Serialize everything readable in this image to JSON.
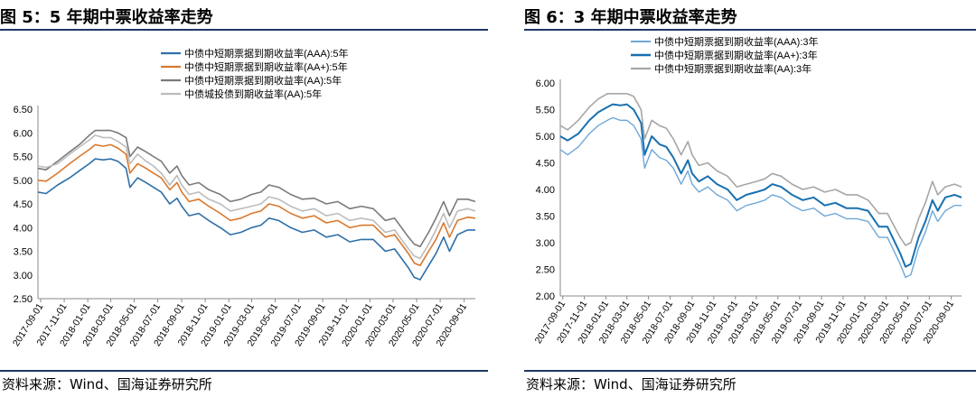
{
  "colors": {
    "aaa": "#2e6fa8",
    "aa_plus": "#d9782d",
    "aa": "#7a7a7a",
    "lgfv": "#bcbcbc",
    "aaa_light": "#6fa8d8",
    "aa_plus_dark": "#1870b0",
    "aa_light": "#a6a6a6",
    "rule": "#1f3864",
    "axis": "#888888"
  },
  "left": {
    "title": "图 5：5 年期中票收益率走势",
    "source": "资料来源：Wind、国海证券研究所"
  },
  "right": {
    "title": "图 6：3 年期中票收益率走势",
    "source": "资料来源：Wind、国海证券研究所"
  },
  "chart_data": [
    {
      "type": "line",
      "ylim": [
        2.5,
        6.5
      ],
      "yticks": [
        "2.50",
        "3.00",
        "3.50",
        "4.00",
        "4.50",
        "5.00",
        "5.50",
        "6.00",
        "6.50"
      ],
      "xlim": [
        "2017-08-25",
        "2020-09-30"
      ],
      "xticks": [
        "2017-09-01",
        "2017-11-01",
        "2018-01-01",
        "2018-03-01",
        "2018-05-01",
        "2018-07-01",
        "2018-09-01",
        "2018-11-01",
        "2019-01-01",
        "2019-03-01",
        "2019-05-01",
        "2019-07-01",
        "2019-09-01",
        "2019-11-01",
        "2020-01-01",
        "2020-03-01",
        "2020-05-01",
        "2020-07-01",
        "2020-09-01"
      ],
      "legend_position": "top-right",
      "series": [
        {
          "name": "中债中短期票据到期收益率(AAA):5年",
          "color": "#2e6fa8",
          "x": [
            "2017-08-25",
            "2017-09-15",
            "2017-10-15",
            "2017-11-15",
            "2017-12-10",
            "2018-01-05",
            "2018-01-20",
            "2018-02-10",
            "2018-03-01",
            "2018-03-20",
            "2018-04-10",
            "2018-04-20",
            "2018-05-10",
            "2018-06-01",
            "2018-06-20",
            "2018-07-10",
            "2018-08-01",
            "2018-08-20",
            "2018-09-01",
            "2018-09-20",
            "2018-10-15",
            "2018-11-10",
            "2018-12-10",
            "2019-01-05",
            "2019-02-01",
            "2019-03-01",
            "2019-03-25",
            "2019-04-15",
            "2019-05-10",
            "2019-06-10",
            "2019-07-10",
            "2019-08-10",
            "2019-09-10",
            "2019-10-10",
            "2019-11-10",
            "2019-12-10",
            "2020-01-10",
            "2020-02-10",
            "2020-03-05",
            "2020-04-10",
            "2020-04-25",
            "2020-05-10",
            "2020-06-01",
            "2020-06-20",
            "2020-07-10",
            "2020-07-25",
            "2020-08-15",
            "2020-09-10",
            "2020-09-30"
          ],
          "y": [
            4.75,
            4.72,
            4.9,
            5.05,
            5.2,
            5.35,
            5.45,
            5.43,
            5.45,
            5.4,
            5.25,
            4.85,
            5.05,
            4.95,
            4.85,
            4.75,
            4.5,
            4.62,
            4.45,
            4.25,
            4.3,
            4.15,
            4.0,
            3.85,
            3.9,
            4.0,
            4.05,
            4.2,
            4.15,
            4.0,
            3.9,
            3.95,
            3.8,
            3.85,
            3.7,
            3.75,
            3.75,
            3.5,
            3.55,
            3.15,
            2.95,
            2.9,
            3.2,
            3.45,
            3.8,
            3.5,
            3.85,
            3.95,
            3.95
          ]
        },
        {
          "name": "中债中短期票据到期收益率(AA+):5年",
          "color": "#d9782d",
          "x": [
            "2017-08-25",
            "2017-09-15",
            "2017-10-15",
            "2017-11-15",
            "2017-12-10",
            "2018-01-05",
            "2018-01-20",
            "2018-02-10",
            "2018-03-01",
            "2018-03-20",
            "2018-04-10",
            "2018-04-20",
            "2018-05-10",
            "2018-06-01",
            "2018-06-20",
            "2018-07-10",
            "2018-08-01",
            "2018-08-20",
            "2018-09-01",
            "2018-09-20",
            "2018-10-15",
            "2018-11-10",
            "2018-12-10",
            "2019-01-05",
            "2019-02-01",
            "2019-03-01",
            "2019-03-25",
            "2019-04-15",
            "2019-05-10",
            "2019-06-10",
            "2019-07-10",
            "2019-08-10",
            "2019-09-10",
            "2019-10-10",
            "2019-11-10",
            "2019-12-10",
            "2020-01-10",
            "2020-02-10",
            "2020-03-05",
            "2020-04-10",
            "2020-04-25",
            "2020-05-10",
            "2020-06-01",
            "2020-06-20",
            "2020-07-10",
            "2020-07-25",
            "2020-08-15",
            "2020-09-10",
            "2020-09-30"
          ],
          "y": [
            5.0,
            4.98,
            5.15,
            5.35,
            5.5,
            5.65,
            5.75,
            5.72,
            5.75,
            5.68,
            5.55,
            5.15,
            5.35,
            5.25,
            5.15,
            5.05,
            4.8,
            4.95,
            4.75,
            4.55,
            4.6,
            4.45,
            4.3,
            4.15,
            4.2,
            4.3,
            4.35,
            4.5,
            4.45,
            4.3,
            4.2,
            4.25,
            4.1,
            4.15,
            4.0,
            4.05,
            4.05,
            3.8,
            3.85,
            3.45,
            3.25,
            3.2,
            3.5,
            3.75,
            4.1,
            3.8,
            4.15,
            4.22,
            4.2
          ]
        },
        {
          "name": "中债中短期票据到期收益率(AA):5年",
          "color": "#7a7a7a",
          "x": [
            "2017-08-25",
            "2017-09-15",
            "2017-10-15",
            "2017-11-15",
            "2017-12-10",
            "2018-01-05",
            "2018-01-20",
            "2018-02-10",
            "2018-03-01",
            "2018-03-20",
            "2018-04-10",
            "2018-04-20",
            "2018-05-10",
            "2018-06-01",
            "2018-06-20",
            "2018-07-10",
            "2018-08-01",
            "2018-08-20",
            "2018-09-01",
            "2018-09-20",
            "2018-10-15",
            "2018-11-10",
            "2018-12-10",
            "2019-01-05",
            "2019-02-01",
            "2019-03-01",
            "2019-03-25",
            "2019-04-15",
            "2019-05-10",
            "2019-06-10",
            "2019-07-10",
            "2019-08-10",
            "2019-09-10",
            "2019-10-10",
            "2019-11-10",
            "2019-12-10",
            "2020-01-10",
            "2020-02-10",
            "2020-03-05",
            "2020-04-10",
            "2020-04-25",
            "2020-05-10",
            "2020-06-01",
            "2020-06-20",
            "2020-07-10",
            "2020-07-25",
            "2020-08-15",
            "2020-09-10",
            "2020-09-30"
          ],
          "y": [
            5.25,
            5.22,
            5.4,
            5.6,
            5.75,
            5.95,
            6.05,
            6.05,
            6.05,
            6.0,
            5.9,
            5.5,
            5.7,
            5.6,
            5.5,
            5.4,
            5.15,
            5.3,
            5.1,
            4.9,
            4.95,
            4.8,
            4.7,
            4.55,
            4.6,
            4.7,
            4.75,
            4.9,
            4.85,
            4.7,
            4.6,
            4.62,
            4.5,
            4.55,
            4.4,
            4.45,
            4.4,
            4.15,
            4.2,
            3.8,
            3.65,
            3.6,
            3.9,
            4.2,
            4.55,
            4.25,
            4.6,
            4.6,
            4.55
          ]
        },
        {
          "name": "中债城投债到期收益率(AA):5年",
          "color": "#bcbcbc",
          "x": [
            "2017-08-25",
            "2017-09-15",
            "2017-10-15",
            "2017-11-15",
            "2017-12-10",
            "2018-01-05",
            "2018-01-20",
            "2018-02-10",
            "2018-03-01",
            "2018-03-20",
            "2018-04-10",
            "2018-04-20",
            "2018-05-10",
            "2018-06-01",
            "2018-06-20",
            "2018-07-10",
            "2018-08-01",
            "2018-08-20",
            "2018-09-01",
            "2018-09-20",
            "2018-10-15",
            "2018-11-10",
            "2018-12-10",
            "2019-01-05",
            "2019-02-01",
            "2019-03-01",
            "2019-03-25",
            "2019-04-15",
            "2019-05-10",
            "2019-06-10",
            "2019-07-10",
            "2019-08-10",
            "2019-09-10",
            "2019-10-10",
            "2019-11-10",
            "2019-12-10",
            "2020-01-10",
            "2020-02-10",
            "2020-03-05",
            "2020-04-10",
            "2020-04-25",
            "2020-05-10",
            "2020-06-01",
            "2020-06-20",
            "2020-07-10",
            "2020-07-25",
            "2020-08-15",
            "2020-09-10",
            "2020-09-30"
          ],
          "y": [
            5.3,
            5.27,
            5.35,
            5.55,
            5.7,
            5.85,
            5.95,
            5.9,
            5.9,
            5.82,
            5.7,
            5.35,
            5.55,
            5.4,
            5.3,
            5.15,
            4.9,
            5.1,
            4.9,
            4.7,
            4.75,
            4.6,
            4.5,
            4.35,
            4.4,
            4.45,
            4.5,
            4.65,
            4.6,
            4.45,
            4.35,
            4.4,
            4.25,
            4.3,
            4.15,
            4.2,
            4.15,
            3.9,
            3.95,
            3.55,
            3.4,
            3.35,
            3.65,
            3.95,
            4.3,
            4.0,
            4.35,
            4.4,
            4.35
          ]
        }
      ]
    },
    {
      "type": "line",
      "ylim": [
        2.0,
        6.0
      ],
      "yticks": [
        "2.00",
        "2.50",
        "3.00",
        "3.50",
        "4.00",
        "4.50",
        "5.00",
        "5.50",
        "6.00"
      ],
      "xlim": [
        "2017-08-25",
        "2020-09-30"
      ],
      "xticks": [
        "2017-09-01",
        "2017-11-01",
        "2018-01-01",
        "2018-03-01",
        "2018-05-01",
        "2018-07-01",
        "2018-09-01",
        "2018-11-01",
        "2019-01-01",
        "2019-03-01",
        "2019-05-01",
        "2019-07-01",
        "2019-09-01",
        "2019-11-01",
        "2020-01-01",
        "2020-03-01",
        "2020-05-01",
        "2020-07-01",
        "2020-09-01"
      ],
      "legend_position": "top",
      "series": [
        {
          "name": "中债中短期票据到期收益率(AAA):3年",
          "color": "#6fa8d8",
          "x": [
            "2017-08-25",
            "2017-09-15",
            "2017-10-15",
            "2017-11-15",
            "2017-12-10",
            "2018-01-05",
            "2018-01-20",
            "2018-02-10",
            "2018-03-01",
            "2018-03-20",
            "2018-04-10",
            "2018-04-20",
            "2018-05-10",
            "2018-06-01",
            "2018-06-20",
            "2018-07-10",
            "2018-08-01",
            "2018-08-20",
            "2018-09-01",
            "2018-09-20",
            "2018-10-15",
            "2018-11-10",
            "2018-12-10",
            "2019-01-05",
            "2019-02-01",
            "2019-03-01",
            "2019-03-25",
            "2019-04-15",
            "2019-05-10",
            "2019-06-10",
            "2019-07-10",
            "2019-08-10",
            "2019-09-10",
            "2019-10-10",
            "2019-11-10",
            "2019-12-10",
            "2020-01-10",
            "2020-02-10",
            "2020-03-05",
            "2020-04-10",
            "2020-04-25",
            "2020-05-10",
            "2020-06-01",
            "2020-06-20",
            "2020-07-10",
            "2020-07-25",
            "2020-08-15",
            "2020-09-10",
            "2020-09-30"
          ],
          "y": [
            4.75,
            4.65,
            4.8,
            5.05,
            5.2,
            5.3,
            5.35,
            5.3,
            5.3,
            5.2,
            4.95,
            4.4,
            4.75,
            4.6,
            4.55,
            4.4,
            4.1,
            4.35,
            4.1,
            3.95,
            4.05,
            3.9,
            3.8,
            3.6,
            3.7,
            3.75,
            3.8,
            3.9,
            3.85,
            3.7,
            3.6,
            3.65,
            3.5,
            3.55,
            3.45,
            3.45,
            3.4,
            3.1,
            3.1,
            2.6,
            2.35,
            2.4,
            2.9,
            3.2,
            3.6,
            3.4,
            3.6,
            3.7,
            3.7
          ]
        },
        {
          "name": "中债中短期票据到期收益率(AA+):3年",
          "color": "#1870b0",
          "x": [
            "2017-08-25",
            "2017-09-15",
            "2017-10-15",
            "2017-11-15",
            "2017-12-10",
            "2018-01-05",
            "2018-01-20",
            "2018-02-10",
            "2018-03-01",
            "2018-03-20",
            "2018-04-10",
            "2018-04-20",
            "2018-05-10",
            "2018-06-01",
            "2018-06-20",
            "2018-07-10",
            "2018-08-01",
            "2018-08-20",
            "2018-09-01",
            "2018-09-20",
            "2018-10-15",
            "2018-11-10",
            "2018-12-10",
            "2019-01-05",
            "2019-02-01",
            "2019-03-01",
            "2019-03-25",
            "2019-04-15",
            "2019-05-10",
            "2019-06-10",
            "2019-07-10",
            "2019-08-10",
            "2019-09-10",
            "2019-10-10",
            "2019-11-10",
            "2019-12-10",
            "2020-01-10",
            "2020-02-10",
            "2020-03-05",
            "2020-04-10",
            "2020-04-25",
            "2020-05-10",
            "2020-06-01",
            "2020-06-20",
            "2020-07-10",
            "2020-07-25",
            "2020-08-15",
            "2020-09-10",
            "2020-09-30"
          ],
          "y": [
            5.0,
            4.92,
            5.05,
            5.3,
            5.45,
            5.55,
            5.6,
            5.58,
            5.6,
            5.5,
            5.25,
            4.65,
            5.0,
            4.85,
            4.8,
            4.6,
            4.3,
            4.55,
            4.3,
            4.15,
            4.25,
            4.1,
            4.0,
            3.8,
            3.9,
            3.95,
            4.0,
            4.1,
            4.05,
            3.9,
            3.8,
            3.85,
            3.7,
            3.75,
            3.65,
            3.65,
            3.6,
            3.3,
            3.3,
            2.8,
            2.55,
            2.6,
            3.1,
            3.4,
            3.8,
            3.6,
            3.85,
            3.9,
            3.85
          ]
        },
        {
          "name": "中债中短期票据到期收益率(AA):3年",
          "color": "#a6a6a6",
          "x": [
            "2017-08-25",
            "2017-09-15",
            "2017-10-15",
            "2017-11-15",
            "2017-12-10",
            "2018-01-05",
            "2018-01-20",
            "2018-02-10",
            "2018-03-01",
            "2018-03-20",
            "2018-04-10",
            "2018-04-20",
            "2018-05-10",
            "2018-06-01",
            "2018-06-20",
            "2018-07-10",
            "2018-08-01",
            "2018-08-20",
            "2018-09-01",
            "2018-09-20",
            "2018-10-15",
            "2018-11-10",
            "2018-12-10",
            "2019-01-05",
            "2019-02-01",
            "2019-03-01",
            "2019-03-25",
            "2019-04-15",
            "2019-05-10",
            "2019-06-10",
            "2019-07-10",
            "2019-08-10",
            "2019-09-10",
            "2019-10-10",
            "2019-11-10",
            "2019-12-10",
            "2020-01-10",
            "2020-02-10",
            "2020-03-05",
            "2020-04-10",
            "2020-04-25",
            "2020-05-10",
            "2020-06-01",
            "2020-06-20",
            "2020-07-10",
            "2020-07-25",
            "2020-08-15",
            "2020-09-10",
            "2020-09-30"
          ],
          "y": [
            5.2,
            5.12,
            5.3,
            5.55,
            5.7,
            5.8,
            5.8,
            5.8,
            5.8,
            5.75,
            5.5,
            4.95,
            5.3,
            5.2,
            5.15,
            4.95,
            4.65,
            4.9,
            4.65,
            4.45,
            4.5,
            4.35,
            4.25,
            4.05,
            4.1,
            4.15,
            4.2,
            4.3,
            4.25,
            4.1,
            4.0,
            4.05,
            3.95,
            4.0,
            3.9,
            3.9,
            3.8,
            3.55,
            3.55,
            3.1,
            2.95,
            3.0,
            3.45,
            3.75,
            4.15,
            3.9,
            4.05,
            4.1,
            4.05
          ]
        }
      ]
    }
  ]
}
